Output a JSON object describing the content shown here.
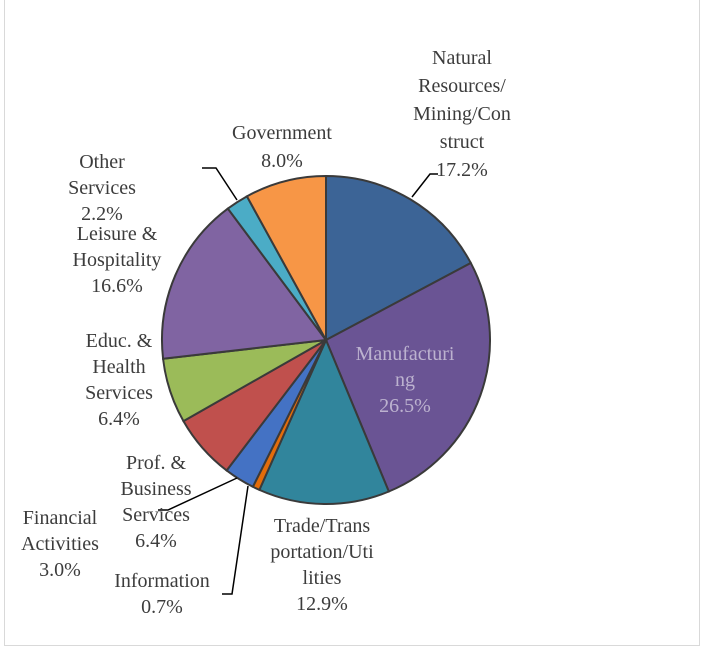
{
  "chart_data": {
    "type": "pie",
    "title": "",
    "slices": [
      {
        "name": "Natural Resources/ Mining/Con struct",
        "label_lines": [
          "Natural",
          "Resources/",
          "Mining/Con",
          "struct"
        ],
        "value": 17.2,
        "value_label": "17.2%",
        "color": "#3c6496"
      },
      {
        "name": "Manufacturi ng",
        "label_lines": [
          "Manufacturi",
          "ng"
        ],
        "value": 26.5,
        "value_label": "26.5%",
        "color": "#6a5494"
      },
      {
        "name": "Trade/Trans portation/Uti lities",
        "label_lines": [
          "Trade/Trans",
          "portation/Uti",
          "lities"
        ],
        "value": 12.9,
        "value_label": "12.9%",
        "color": "#31859c"
      },
      {
        "name": "Information",
        "label_lines": [
          "Information"
        ],
        "value": 0.7,
        "value_label": "0.7%",
        "color": "#e46c0a"
      },
      {
        "name": "Financial Activities",
        "label_lines": [
          "Financial",
          "Activities"
        ],
        "value": 3.0,
        "value_label": "3.0%",
        "color": "#4472c4"
      },
      {
        "name": "Prof. & Business Services",
        "label_lines": [
          "Prof. &",
          "Business",
          "Services"
        ],
        "value": 6.4,
        "value_label": "6.4%",
        "color": "#c0504d"
      },
      {
        "name": "Educ. & Health Services",
        "label_lines": [
          "Educ. &",
          "Health",
          "Services"
        ],
        "value": 6.4,
        "value_label": "6.4%",
        "color": "#9bbb59"
      },
      {
        "name": "Leisure & Hospitality",
        "label_lines": [
          "Leisure &",
          "Hospitality"
        ],
        "value": 16.6,
        "value_label": "16.6%",
        "color": "#8064a2"
      },
      {
        "name": "Other Services",
        "label_lines": [
          "Other",
          "Services"
        ],
        "value": 2.2,
        "value_label": "2.2%",
        "color": "#4bacc6"
      },
      {
        "name": "Government",
        "label_lines": [
          "Government"
        ],
        "value": 8.0,
        "value_label": "8.0%",
        "color": "#f79646"
      }
    ]
  }
}
